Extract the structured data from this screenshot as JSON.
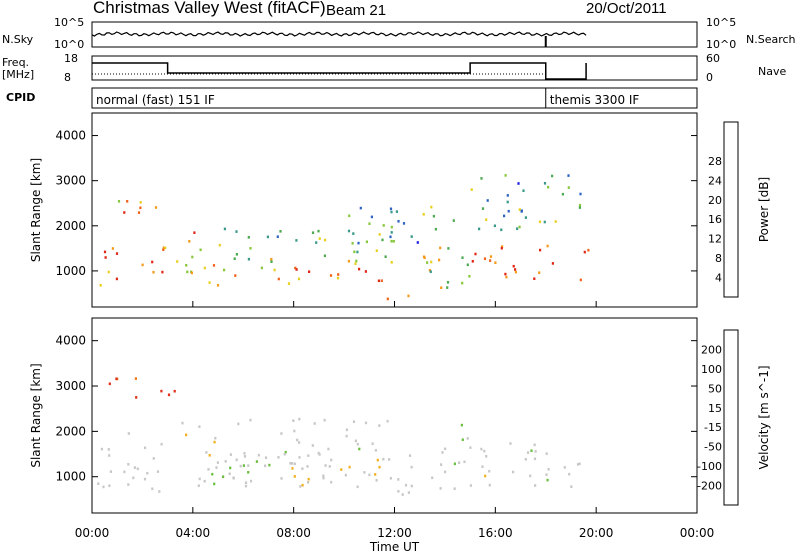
{
  "header": {
    "station": "Christmas Valley West (fitACF)",
    "beam": "Beam 21",
    "date": "20/Oct/2011"
  },
  "summary": {
    "nsky_label": "N.Sky",
    "nsearch_label": "N.Search",
    "freq_label_1": "Freq.",
    "freq_label_2": "[MHz]",
    "nave_label": "Nave",
    "cpid_label": "CPID",
    "noise_ticks": [
      "10^5",
      "10^0"
    ],
    "noise_right_ticks": [
      "10^5",
      "10^0"
    ],
    "freq_ticks": [
      "18",
      "8"
    ],
    "nave_ticks": [
      "60",
      "0"
    ],
    "cpid_segments": [
      {
        "start_hour": 0,
        "end_hour": 18.0,
        "text": "normal (fast) 151 IF"
      },
      {
        "start_hour": 18.0,
        "end_hour": 24.0,
        "text": "themis 3300 IF"
      }
    ]
  },
  "chart_data": [
    {
      "type": "heatmap",
      "name": "power",
      "xlabel": "",
      "ylabel": "Slant Range [km]",
      "xlim": [
        0,
        24
      ],
      "ylim": [
        200,
        4500
      ],
      "yticks": [
        1000,
        2000,
        3000,
        4000
      ],
      "colorbar_label": "Power [dB]",
      "colorbar_ticks": [
        4,
        8,
        12,
        16,
        20,
        24,
        28
      ],
      "colorbar_colors": [
        "#1f1fe0",
        "#2d63c4",
        "#3a9a8a",
        "#4caa50",
        "#88c83c",
        "#e8d020",
        "#f59a1c",
        "#f0641a",
        "#e02818"
      ],
      "scatter_bands": [
        {
          "t0": 0.2,
          "t1": 3.0,
          "r0": 700,
          "r1": 1600,
          "level": 0.85
        },
        {
          "t0": 0.8,
          "t1": 2.6,
          "r0": 2200,
          "r1": 2900,
          "level": 0.7
        },
        {
          "t0": 3.0,
          "t1": 4.6,
          "r0": 900,
          "r1": 2000,
          "level": 0.65
        },
        {
          "t0": 4.6,
          "t1": 12.2,
          "r0": 700,
          "r1": 1200,
          "level": 0.75
        },
        {
          "t0": 5.0,
          "t1": 12.4,
          "r0": 1200,
          "r1": 2000,
          "level": 0.45
        },
        {
          "t0": 10.0,
          "t1": 14.5,
          "r0": 1600,
          "r1": 2500,
          "level": 0.35
        },
        {
          "t0": 12.2,
          "t1": 15.0,
          "r0": 600,
          "r1": 1600,
          "level": 0.55
        },
        {
          "t0": 15.0,
          "t1": 19.7,
          "r0": 800,
          "r1": 1600,
          "level": 0.85
        },
        {
          "t0": 15.0,
          "t1": 19.5,
          "r0": 1900,
          "r1": 3200,
          "level": 0.35
        },
        {
          "t0": 11.6,
          "t1": 12.6,
          "r0": 250,
          "r1": 600,
          "level": 0.9
        }
      ]
    },
    {
      "type": "heatmap",
      "name": "velocity",
      "xlabel": "Time UT",
      "ylabel": "Slant Range [km]",
      "xlim": [
        0,
        24
      ],
      "ylim": [
        200,
        4500
      ],
      "yticks": [
        1000,
        2000,
        3000,
        4000
      ],
      "xticks": [
        "00:00",
        "04:00",
        "08:00",
        "12:00",
        "16:00",
        "20:00",
        "00:00"
      ],
      "colorbar_label": "Velocity [m s^-1]",
      "colorbar_ticks": [
        200,
        100,
        50,
        15,
        -15,
        -50,
        -100,
        -200
      ],
      "colorbar_colors": [
        "#2040c8",
        "#2b63b8",
        "#2f8a6a",
        "#6cc040",
        "#c8c8c8",
        "#f0b020",
        "#f07818",
        "#e03018",
        "#e00808"
      ],
      "scatter_bands": [
        {
          "t0": 0.0,
          "t1": 3.0,
          "r0": 700,
          "r1": 2000,
          "kind": "gray"
        },
        {
          "t0": 3.0,
          "t1": 12.0,
          "r0": 1200,
          "r1": 2300,
          "kind": "gray"
        },
        {
          "t0": 4.0,
          "t1": 12.0,
          "r0": 800,
          "r1": 1300,
          "kind": "gray"
        },
        {
          "t0": 12.0,
          "t1": 15.0,
          "r0": 600,
          "r1": 1700,
          "kind": "gray"
        },
        {
          "t0": 15.0,
          "t1": 19.7,
          "r0": 800,
          "r1": 1800,
          "kind": "gray"
        },
        {
          "t0": 4.6,
          "t1": 7.0,
          "r0": 800,
          "r1": 1400,
          "kind": "green"
        },
        {
          "t0": 7.5,
          "t1": 11.5,
          "r0": 800,
          "r1": 1400,
          "kind": "orange"
        },
        {
          "t0": 0.6,
          "t1": 2.4,
          "r0": 2700,
          "r1": 3200,
          "kind": "red"
        },
        {
          "t0": 2.6,
          "t1": 3.6,
          "r0": 2800,
          "r1": 3300,
          "kind": "red"
        },
        {
          "t0": 14.3,
          "t1": 15.2,
          "r0": 1200,
          "r1": 2300,
          "kind": "green"
        }
      ]
    }
  ]
}
